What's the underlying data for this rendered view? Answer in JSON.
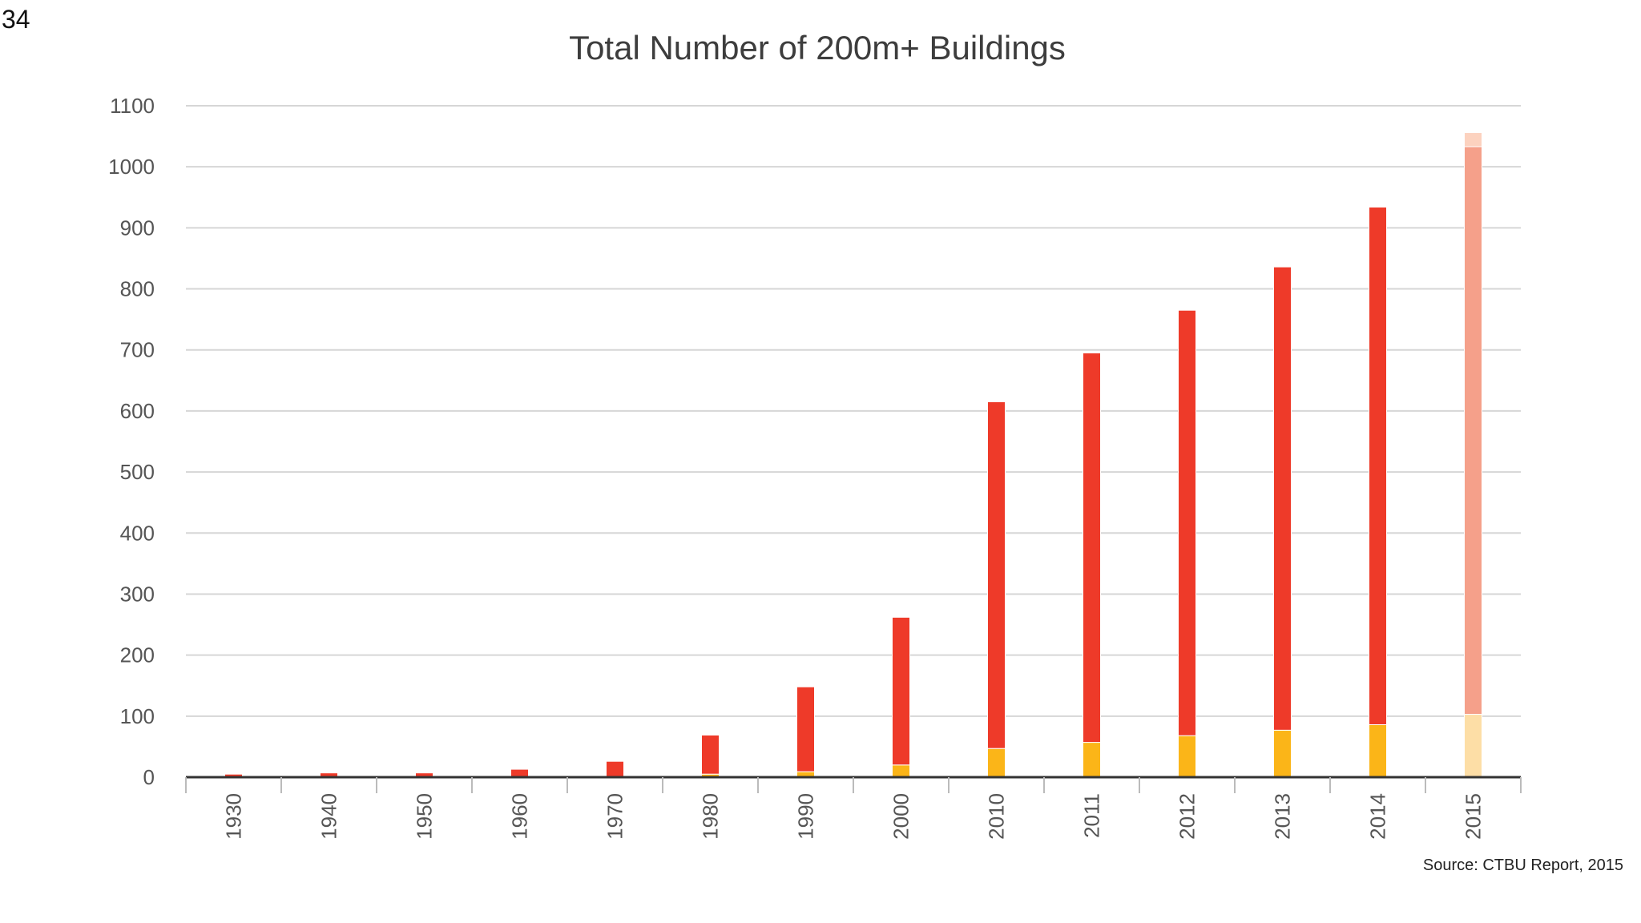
{
  "slide": {
    "page_number": "34",
    "source": "Source: CTBU Report, 2015"
  },
  "chart_data": {
    "type": "bar",
    "stacked": true,
    "title": "Total Number of 200m+ Buildings",
    "xlabel": "",
    "ylabel": "",
    "ylim": [
      0,
      1100
    ],
    "yticks": [
      0,
      100,
      200,
      300,
      400,
      500,
      600,
      700,
      800,
      900,
      1000,
      1100
    ],
    "grid": true,
    "legend": "none",
    "categories": [
      "1930",
      "1940",
      "1950",
      "1960",
      "1970",
      "1980",
      "1990",
      "2000",
      "2010",
      "2011",
      "2012",
      "2013",
      "2014",
      "2015"
    ],
    "series": [
      {
        "color": "#fbb518",
        "values": [
          0,
          0,
          0,
          0,
          1,
          5,
          9,
          20,
          47,
          57,
          68,
          77,
          86,
          103
        ]
      },
      {
        "color": "#ee3a29",
        "values": [
          5,
          7,
          7,
          13,
          25,
          64,
          139,
          242,
          568,
          638,
          697,
          759,
          848,
          930
        ]
      },
      {
        "color": "#fcd2bf",
        "values": [
          0,
          0,
          0,
          0,
          0,
          0,
          0,
          0,
          0,
          0,
          0,
          0,
          0,
          23
        ]
      }
    ],
    "highlight": {
      "category": "2015",
      "colors": [
        "#fddea6",
        "#f5a08a",
        "#fcd2bf"
      ]
    }
  }
}
